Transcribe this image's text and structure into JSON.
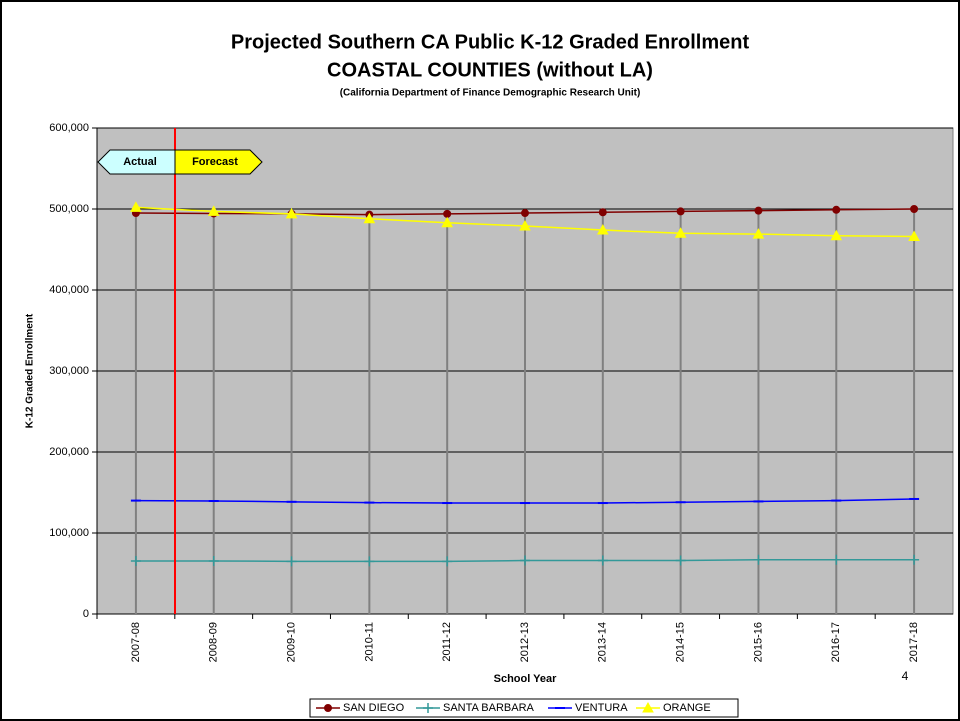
{
  "chart_data": {
    "type": "line",
    "title": "Projected Southern CA Public K-12 Graded Enrollment",
    "subtitle": "COASTAL COUNTIES (without LA)",
    "source": "(California Department of Finance Demographic Research Unit)",
    "x_label": "School Year",
    "y_label": "K-12 Graded Enrollment",
    "annotations": [
      "Actual",
      "Forecast"
    ],
    "page_number": "4",
    "categories": [
      "2007-08",
      "2008-09",
      "2009-10",
      "2010-11",
      "2011-12",
      "2012-13",
      "2013-14",
      "2014-15",
      "2015-16",
      "2016-17",
      "2017-18"
    ],
    "series": [
      {
        "name": "SAN DIEGO",
        "color": "#800000",
        "marker": "circle",
        "values": [
          495000,
          494500,
          494000,
          493000,
          494000,
          495000,
          496000,
          497000,
          498000,
          499000,
          500000
        ]
      },
      {
        "name": "SANTA BARBARA",
        "color": "#339999",
        "marker": "plus",
        "values": [
          65500,
          65500,
          65000,
          65000,
          65000,
          66000,
          66000,
          66000,
          67000,
          67000,
          67000
        ]
      },
      {
        "name": "VENTURA",
        "color": "#0000ff",
        "marker": "dash",
        "values": [
          140000,
          139500,
          138500,
          137500,
          137000,
          137000,
          137000,
          138000,
          139000,
          140000,
          142000
        ]
      },
      {
        "name": "ORANGE",
        "color": "#ffff00",
        "marker": "triangle",
        "values": [
          502000,
          497000,
          494000,
          488000,
          483000,
          479000,
          474000,
          470000,
          469000,
          467000,
          466000
        ]
      }
    ],
    "ylim": [
      0,
      600000
    ],
    "yticks": [
      0,
      {
        "value": 100000,
        "label": "100,000"
      },
      {
        "value": 200000,
        "label": "200,000"
      },
      {
        "value": 300000,
        "label": "300,000"
      },
      {
        "value": 400000,
        "label": "400,000"
      },
      {
        "value": 500000,
        "label": "500,000"
      },
      {
        "value": 600000,
        "label": "600,000"
      }
    ],
    "grid": true,
    "plot_background": "#c0c0c0"
  }
}
